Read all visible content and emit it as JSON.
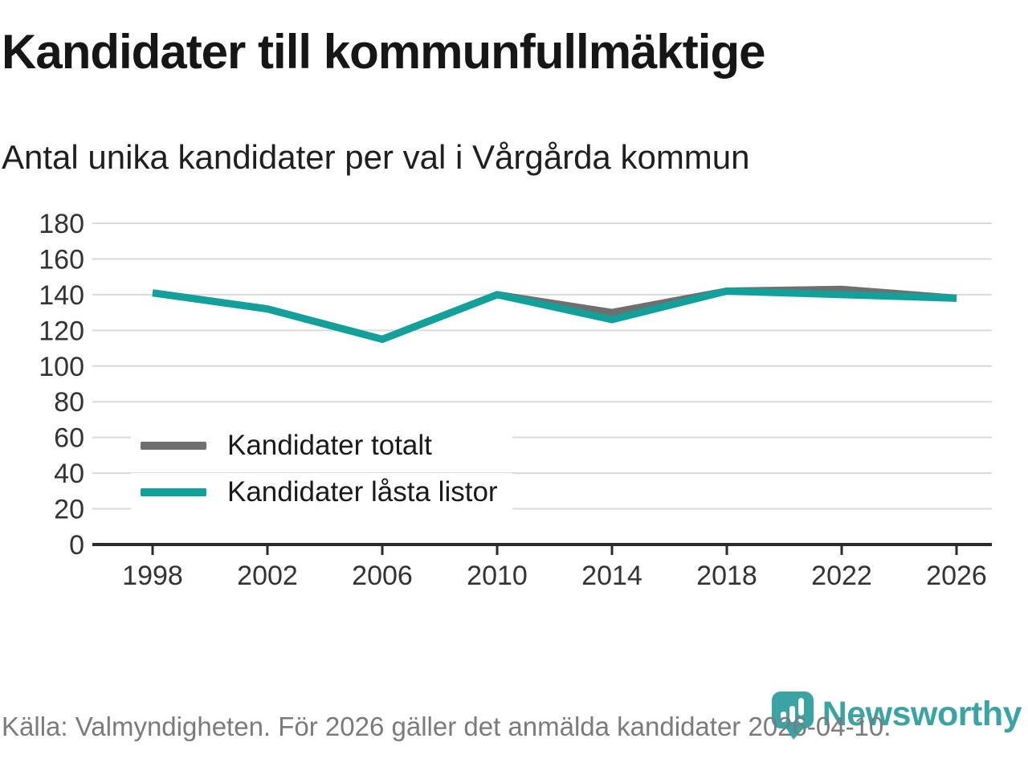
{
  "header": {
    "title": "Kandidater till kommunfullmäktige",
    "subtitle": "Antal unika kandidater per val i Vårgårda kommun"
  },
  "chart_data": {
    "type": "line",
    "categories": [
      "1998",
      "2002",
      "2006",
      "2010",
      "2014",
      "2018",
      "2022",
      "2026"
    ],
    "series": [
      {
        "name": "Kandidater totalt",
        "color": "#6f6f6f",
        "values": [
          141,
          132,
          115,
          140,
          130,
          142,
          143,
          138
        ]
      },
      {
        "name": "Kandidater låsta listor",
        "color": "#12a19a",
        "values": [
          141,
          132,
          115,
          140,
          126,
          142,
          140,
          138
        ]
      }
    ],
    "title": "Kandidater till kommunfullmäktige",
    "subtitle": "Antal unika kandidater per val i Vårgårda kommun",
    "xlabel": "",
    "ylabel": "",
    "ylim": [
      0,
      180
    ],
    "ytick_step": 20,
    "grid": true,
    "legend_position": "inside-bottom-left"
  },
  "footer": {
    "source": "Källa: Valmyndigheten. För 2026 gäller det anmälda kandidater 2026-04-10.",
    "brand": "Newsworthy"
  },
  "colors": {
    "series_total": "#6f6f6f",
    "series_locked": "#12a19a",
    "gridline": "#dadada",
    "axis": "#2b2b2b",
    "tick_label": "#333333",
    "footer_text": "#7b7b7b",
    "brand_teal": "#3aa3a3",
    "background": "#ffffff"
  }
}
